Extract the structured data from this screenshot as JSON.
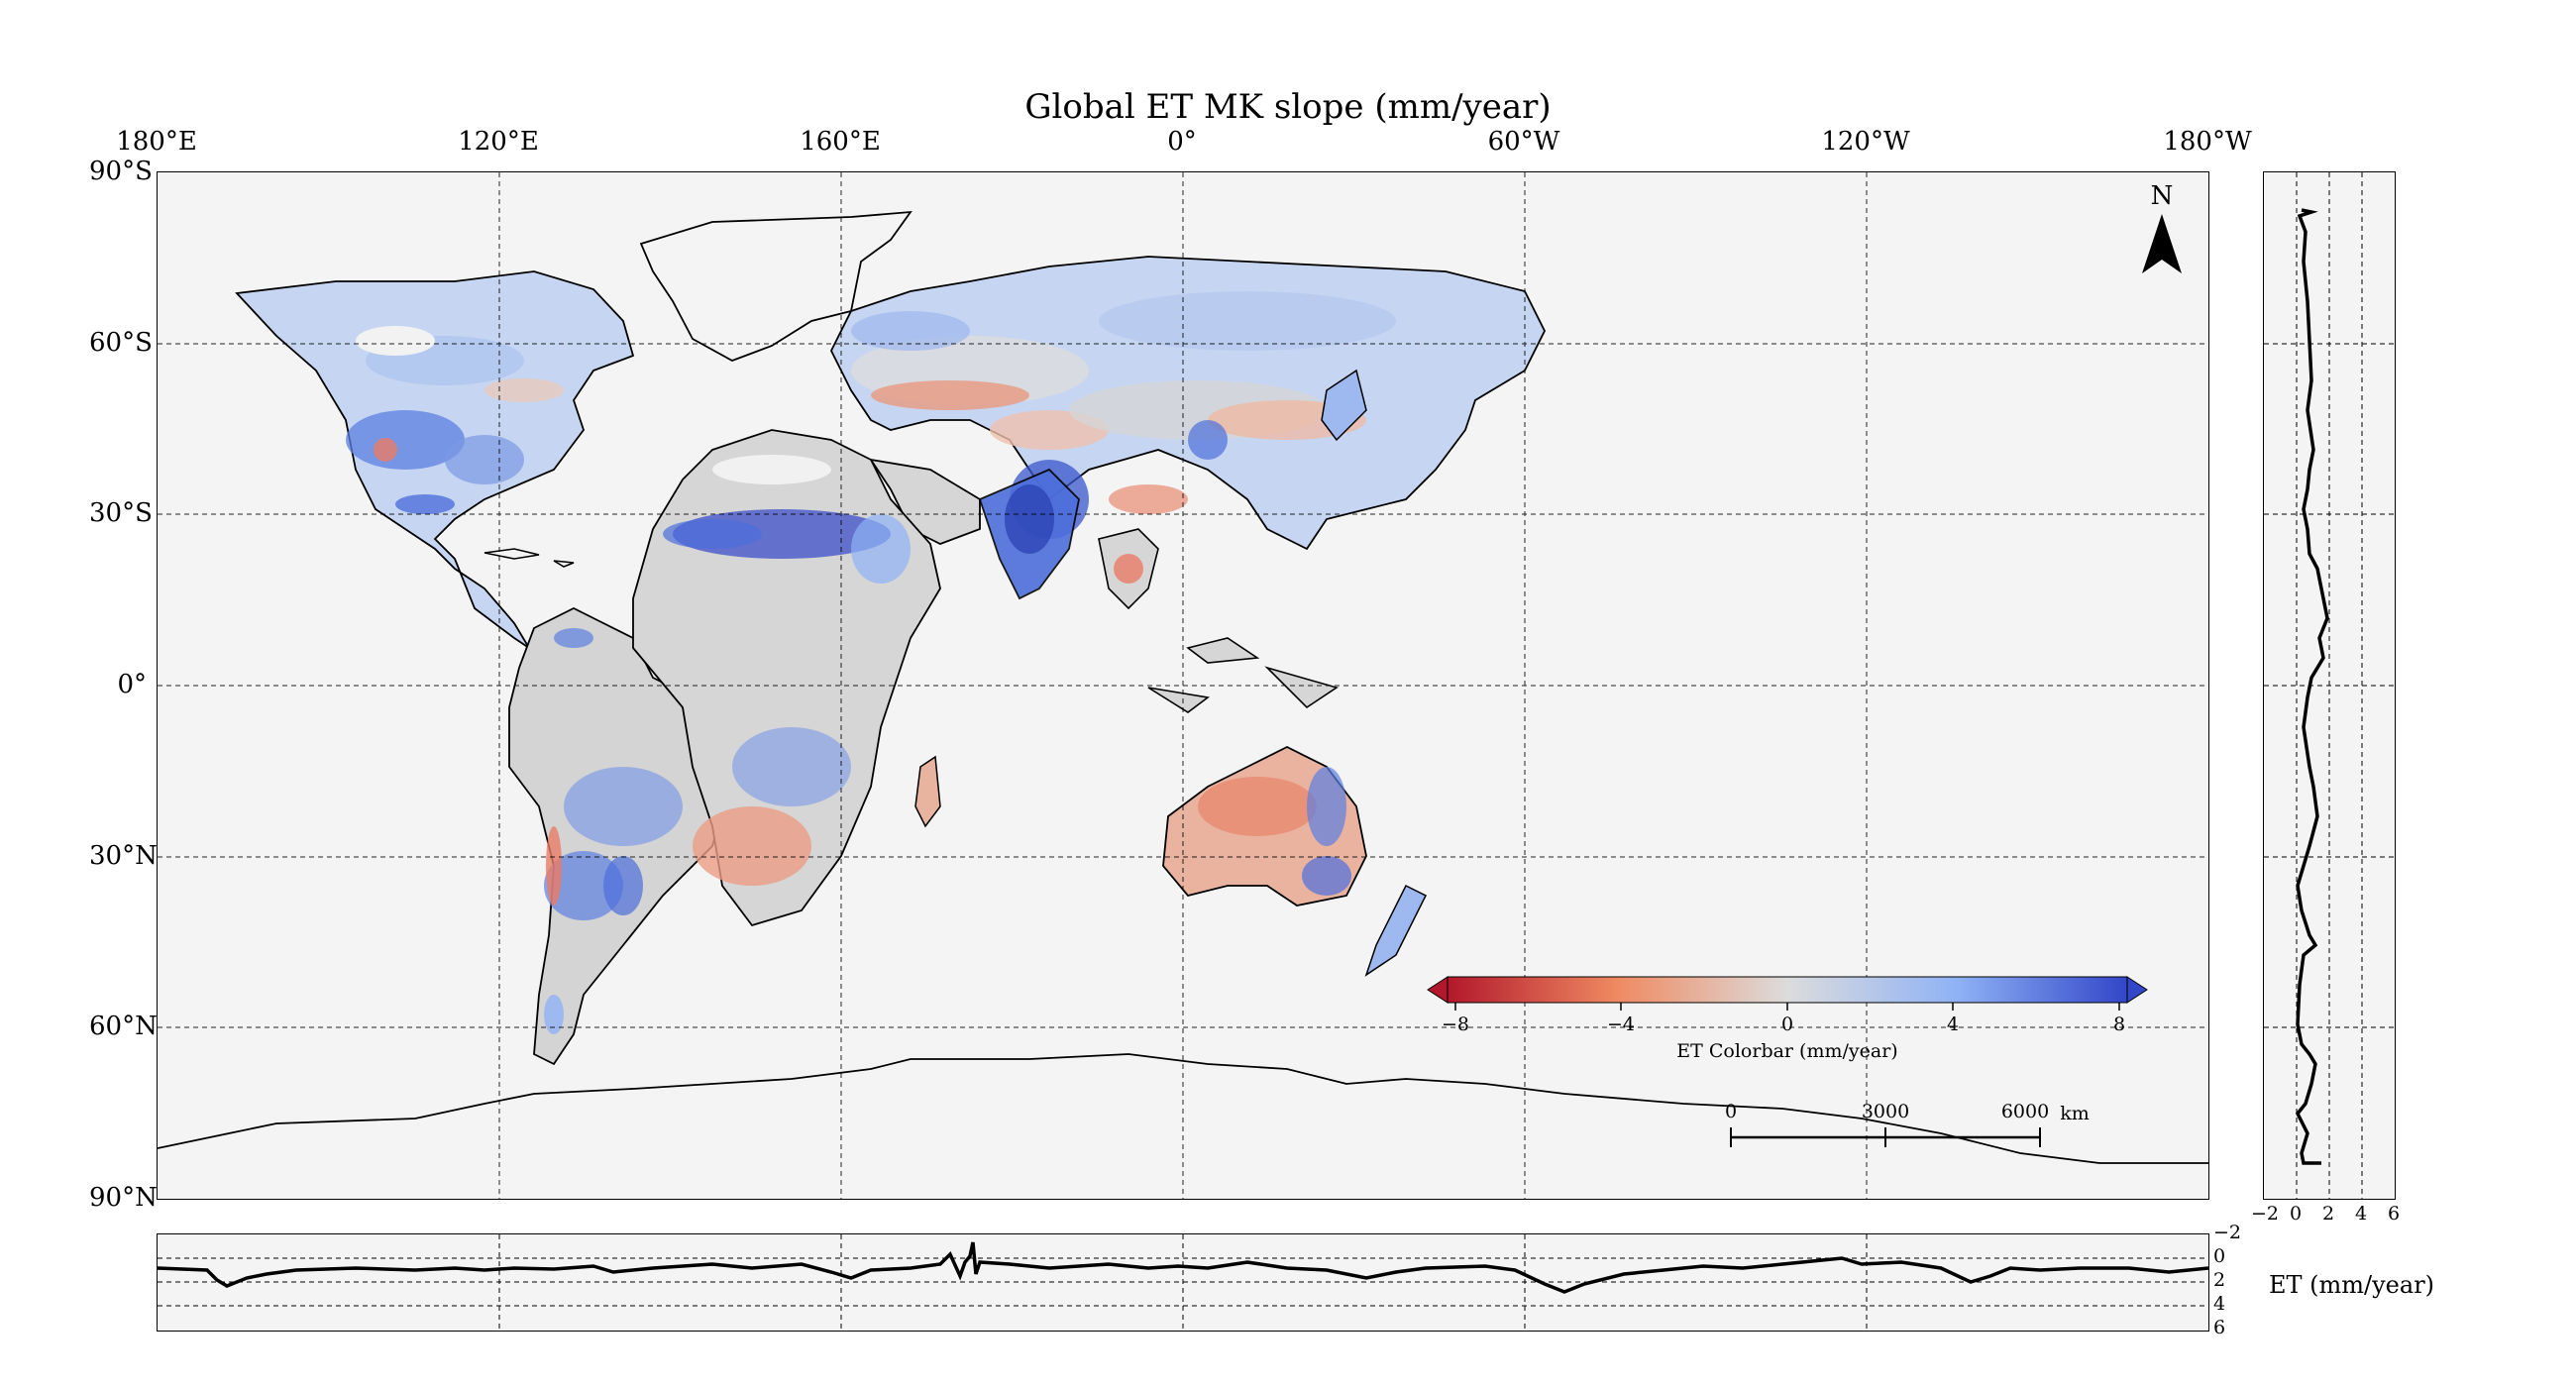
{
  "title": "Global ET MK slope (mm/year)",
  "top_longitude_labels": [
    "180°E",
    "120°E",
    "160°E",
    "0°",
    "60°W",
    "120°W",
    "180°W"
  ],
  "left_latitude_labels": [
    "90°S",
    "60°S",
    "30°S",
    "0°",
    "30°N",
    "60°N",
    "90°N"
  ],
  "north_arrow": {
    "letter": "N",
    "icon": "north-arrow-icon"
  },
  "colorbar": {
    "title": "ET Colorbar (mm/year)",
    "ticks": [
      "−8",
      "−4",
      "0",
      "4",
      "8"
    ],
    "range": [
      -8,
      8
    ],
    "colors": [
      "#b2182b",
      "#ef8a62",
      "#dcdcdc",
      "#8fb2f5",
      "#3246c8"
    ],
    "extend": "both"
  },
  "scalebar": {
    "ticks": [
      "0",
      "3000",
      "6000"
    ],
    "unit": "km"
  },
  "right_panel": {
    "x_ticks": [
      "−2",
      "0",
      "2",
      "4",
      "6"
    ],
    "x_range": [
      -2,
      6
    ]
  },
  "bottom_panel": {
    "y_ticks": [
      "−2",
      "0",
      "2",
      "4",
      "6"
    ],
    "y_range": [
      -2,
      6
    ]
  },
  "et_axis_label": "ET (mm/year)",
  "colors": {
    "ocean_bg": "#f4f4f4",
    "land_neutral": "#d6d6d6",
    "positive": "#3a5fd9",
    "negative": "#e0664a"
  }
}
